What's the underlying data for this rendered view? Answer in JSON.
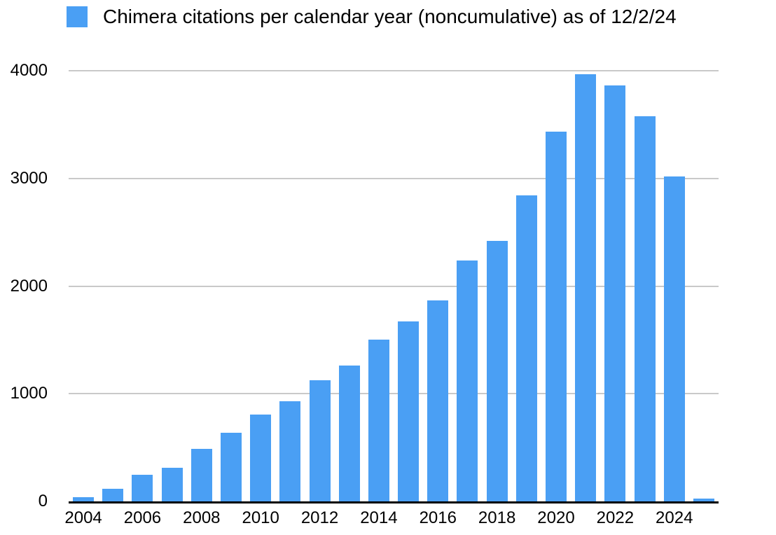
{
  "colors": {
    "bar": "#4A9FF4",
    "gridline": "#C9C9C9",
    "axis": "#000000",
    "text": "#000000"
  },
  "chart_data": {
    "type": "bar",
    "title": "Chimera citations per calendar year (noncumulative) as of 12/2/24",
    "legend_position": "top-left",
    "grid": true,
    "xlabel": "",
    "ylabel": "",
    "ylim": [
      0,
      4000
    ],
    "y_ticks": [
      0,
      1000,
      2000,
      3000,
      4000
    ],
    "x_tick_labels": [
      "2004",
      "2006",
      "2008",
      "2010",
      "2012",
      "2014",
      "2016",
      "2018",
      "2020",
      "2022",
      "2024"
    ],
    "categories": [
      "2004",
      "2005",
      "2006",
      "2007",
      "2008",
      "2009",
      "2010",
      "2011",
      "2012",
      "2013",
      "2014",
      "2015",
      "2016",
      "2017",
      "2018",
      "2019",
      "2020",
      "2021",
      "2022",
      "2023",
      "2024",
      "2025"
    ],
    "values": [
      40,
      115,
      250,
      315,
      485,
      635,
      805,
      930,
      1125,
      1260,
      1505,
      1670,
      1865,
      2235,
      2420,
      2845,
      3435,
      3965,
      3865,
      3580,
      3015,
      25
    ]
  }
}
